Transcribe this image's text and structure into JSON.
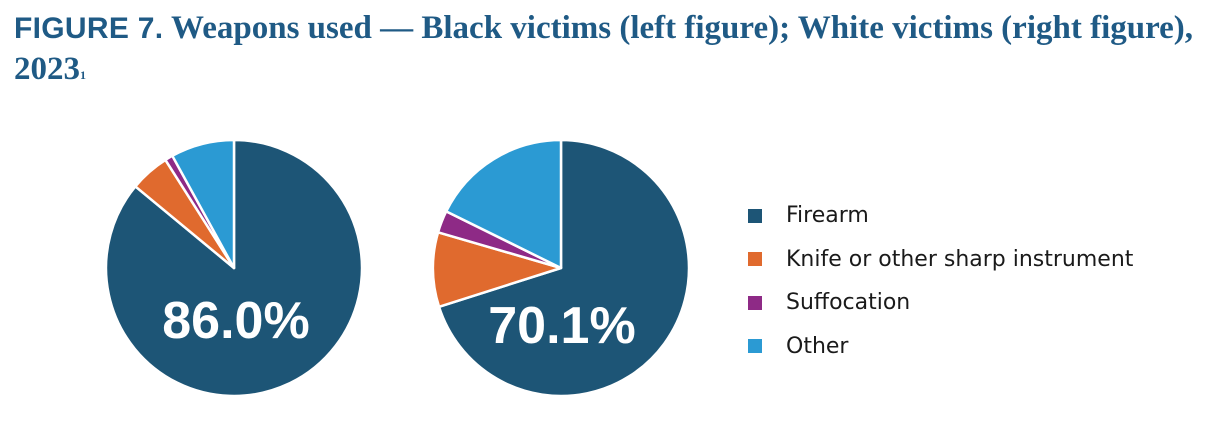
{
  "title": {
    "figure_label": "FIGURE 7.",
    "text": " Weapons used — Black victims (left figure); White victims (right figure), 2023",
    "footnote": "1"
  },
  "colors": {
    "Firearm": "#1d5576",
    "Knife or other sharp instrument": "#e06a2e",
    "Suffocation": "#8e2a86",
    "Other": "#2b9ad3"
  },
  "legend": [
    "Firearm",
    "Knife or other sharp instrument",
    "Suffocation",
    "Other"
  ],
  "chart_data": [
    {
      "type": "pie",
      "name": "Black victims",
      "slices": [
        {
          "label": "Firearm",
          "value": 86.0
        },
        {
          "label": "Knife or other sharp instrument",
          "value": 5.0
        },
        {
          "label": "Suffocation",
          "value": 1.0
        },
        {
          "label": "Other",
          "value": 8.0
        }
      ],
      "data_label": "86.0%",
      "legend_position": "right"
    },
    {
      "type": "pie",
      "name": "White victims",
      "slices": [
        {
          "label": "Firearm",
          "value": 70.1
        },
        {
          "label": "Knife or other sharp instrument",
          "value": 9.4
        },
        {
          "label": "Suffocation",
          "value": 2.8
        },
        {
          "label": "Other",
          "value": 17.7
        }
      ],
      "data_label": "70.1%",
      "legend_position": "right"
    }
  ]
}
